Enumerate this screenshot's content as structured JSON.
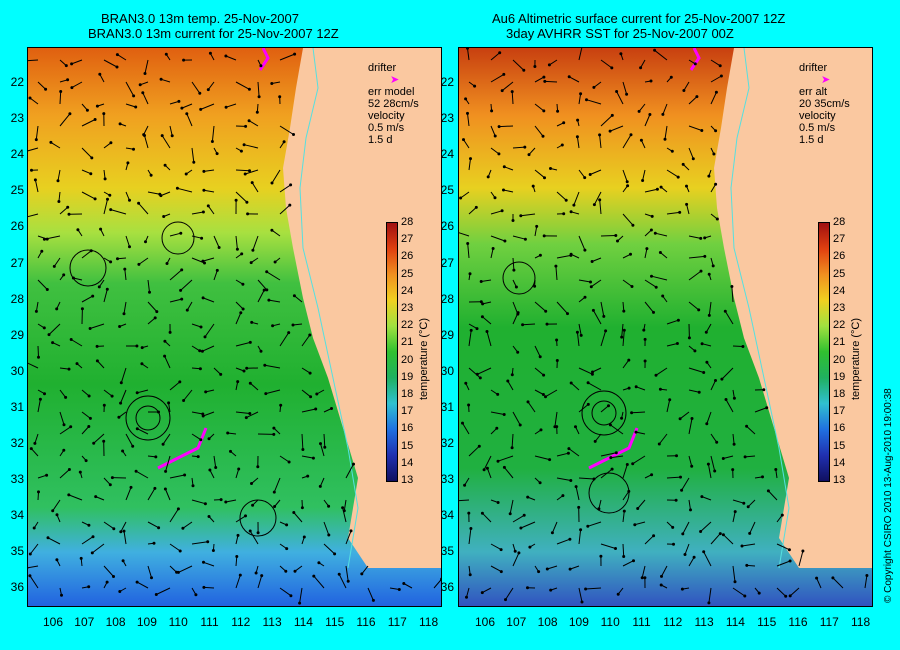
{
  "left": {
    "title_line1": "BRAN3.0 13m temp. 25-Nov-2007",
    "title_line2": "BRAN3.0 13m current for 25-Nov-2007 12Z",
    "legend": {
      "drifter": "drifter",
      "err_label": "err model",
      "err_value": "52 28cm/s",
      "velocity": "velocity",
      "scale_speed": "0.5 m/s",
      "scale_time": "1.5 d"
    }
  },
  "right": {
    "title_line1": "Au6 Altimetric surface current for 25-Nov-2007 12Z",
    "title_line2": "3day AVHRR SST for 25-Nov-2007 00Z",
    "legend": {
      "drifter": "drifter",
      "err_label": "err alt",
      "err_value": "20 35cm/s",
      "velocity": "velocity",
      "scale_speed": "0.5 m/s",
      "scale_time": "1.5 d"
    }
  },
  "latitude_labels": [
    "22",
    "23",
    "24",
    "25",
    "26",
    "27",
    "28",
    "29",
    "30",
    "31",
    "32",
    "33",
    "34",
    "35",
    "36"
  ],
  "longitude_labels": [
    "106",
    "107",
    "108",
    "109",
    "110",
    "111",
    "112",
    "113",
    "114",
    "115",
    "116",
    "117",
    "118"
  ],
  "colorbar": {
    "label": "temperature (°C)",
    "ticks": [
      "28",
      "27",
      "26",
      "25",
      "24",
      "23",
      "22",
      "21",
      "20",
      "19",
      "18",
      "17",
      "16",
      "15",
      "14",
      "13"
    ]
  },
  "copyright": "© Copyright CSIRO 2010   13-Aug-2010 19:00:38",
  "colors": {
    "background": "#00ffff",
    "land": "#fac8a0",
    "drifter": "#ff00ff",
    "isobath": "#55e0e0"
  }
}
